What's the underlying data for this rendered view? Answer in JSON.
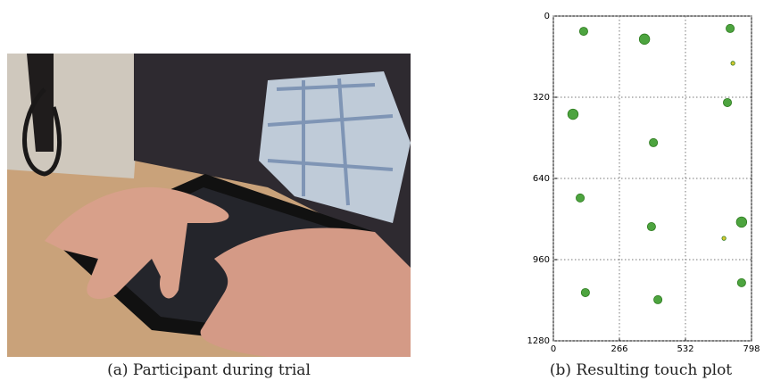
{
  "photo": {
    "caption": "(a) Participant during trial"
  },
  "chart_data": {
    "type": "scatter",
    "caption": "(b) Resulting touch plot",
    "x": [
      122,
      367,
      712,
      723,
      79,
      701,
      403,
      108,
      758,
      395,
      687,
      758,
      129,
      421
    ],
    "y": [
      60,
      91,
      49,
      186,
      387,
      341,
      499,
      717,
      812,
      830,
      876,
      1051,
      1090,
      1118
    ],
    "sizes": [
      3,
      4,
      3,
      1,
      4,
      3,
      3,
      3,
      4,
      3,
      1,
      3,
      3,
      3
    ],
    "colors": [
      "#3a9a2a",
      "#3a9a2a",
      "#3a9a2a",
      "#d4c21a",
      "#3a9a2a",
      "#3a9a2a",
      "#3a9a2a",
      "#3a9a2a",
      "#3a9a2a",
      "#3a9a2a",
      "#d4c21a",
      "#3a9a2a",
      "#3a9a2a",
      "#3a9a2a"
    ],
    "xlim": [
      0,
      798
    ],
    "ylim": [
      1280,
      0
    ],
    "xticks": [
      0,
      266,
      532,
      798
    ],
    "yticks": [
      0,
      320,
      640,
      960,
      1280
    ],
    "grid": true
  }
}
